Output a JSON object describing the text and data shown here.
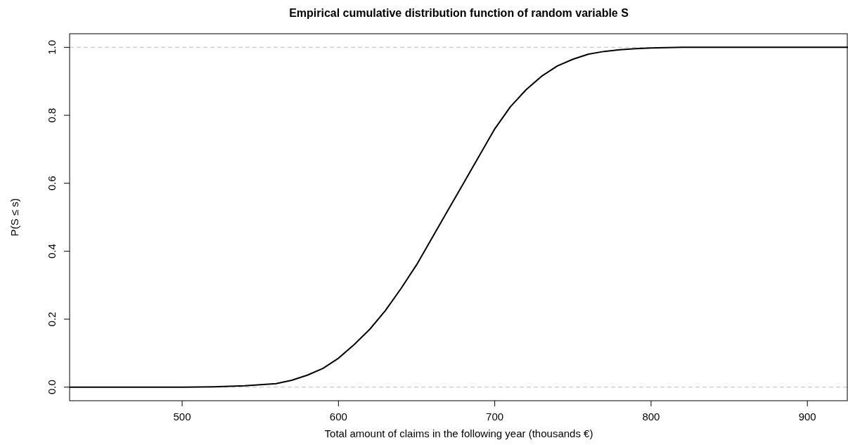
{
  "chart_data": {
    "type": "line",
    "title": "Empirical cumulative distribution function of random variable S",
    "xlabel": "Total amount of claims in the following year (thousands €)",
    "ylabel": "P(S ≤ s)",
    "series": [
      {
        "color": "#000000",
        "x": [
          428,
          500,
          520,
          540,
          560,
          570,
          580,
          590,
          600,
          610,
          620,
          630,
          640,
          650,
          660,
          670,
          680,
          690,
          700,
          710,
          720,
          730,
          740,
          750,
          760,
          770,
          780,
          790,
          800,
          820,
          850,
          926
        ],
        "values": [
          0,
          0,
          0.001,
          0.004,
          0.01,
          0.02,
          0.035,
          0.055,
          0.085,
          0.125,
          0.17,
          0.225,
          0.29,
          0.36,
          0.44,
          0.52,
          0.6,
          0.68,
          0.76,
          0.825,
          0.875,
          0.915,
          0.945,
          0.965,
          0.98,
          0.988,
          0.993,
          0.996,
          0.998,
          1,
          1,
          1
        ]
      }
    ],
    "xlim": [
      428,
      926
    ],
    "ylim": [
      -0.04,
      1.04
    ],
    "xticks": [
      500,
      600,
      700,
      800,
      900
    ],
    "yticks": [
      {
        "value": 0,
        "label": "0.0"
      },
      {
        "value": 0.2,
        "label": "0.2"
      },
      {
        "value": 0.4,
        "label": "0.4"
      },
      {
        "value": 0.6,
        "label": "0.6"
      },
      {
        "value": 0.8,
        "label": "0.8"
      },
      {
        "value": 1,
        "label": "1.0"
      }
    ],
    "ref_lines": [
      {
        "axis": "y",
        "value": 0,
        "color": "#bebebe",
        "line_style": "dashed"
      },
      {
        "axis": "y",
        "value": 1,
        "color": "#bebebe",
        "line_style": "dashed"
      }
    ],
    "grid": false,
    "line_style": "solid"
  }
}
